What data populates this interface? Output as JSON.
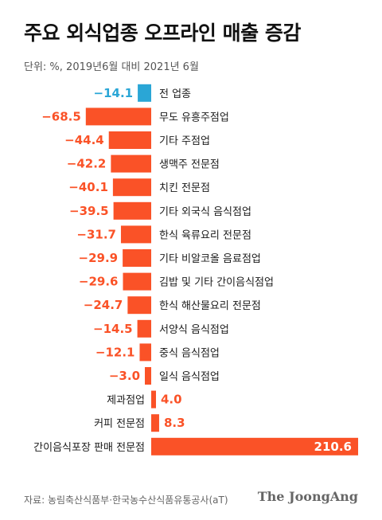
{
  "title": "주요 외식업종 오프라인 매출 증감",
  "subtitle": "단위: %, 2019년6월 대비 2021년 6월",
  "source": "자료: 농림축산식품부·한국농수산식품유통공사(aT)",
  "brand": "The JoongAng",
  "colors": {
    "total": "#2aa6d6",
    "bar": "#fa5227",
    "label": "#fa5227",
    "text": "#1a1a1a"
  },
  "chart_data": {
    "type": "bar",
    "orientation": "horizontal",
    "categories": [
      "전 업종",
      "무도 유흥주점업",
      "기타 주점업",
      "생맥주 전문점",
      "치킨 전문점",
      "기타 외국식 음식점업",
      "한식 육류요리 전문점",
      "기타 비알코올 음료점업",
      "김밥 및 기타 간이음식점업",
      "한식 해산물요리 전문점",
      "서양식 음식점업",
      "중식 음식점업",
      "일식 음식점업",
      "제과점업",
      "커피 전문점",
      "간이음식포장 판매 전문점"
    ],
    "values": [
      -14.1,
      -68.5,
      -44.4,
      -42.2,
      -40.1,
      -39.5,
      -31.7,
      -29.9,
      -29.6,
      -24.7,
      -14.5,
      -12.1,
      -3.0,
      4.0,
      8.3,
      210.6
    ],
    "value_labels": [
      "−14.1",
      "−68.5",
      "−44.4",
      "−42.2",
      "−40.1",
      "−39.5",
      "−31.7",
      "−29.9",
      "−29.6",
      "−24.7",
      "−14.5",
      "−12.1",
      "−3.0",
      "4.0",
      "8.3",
      "210.6"
    ],
    "highlight_index": 0,
    "unit": "%"
  }
}
